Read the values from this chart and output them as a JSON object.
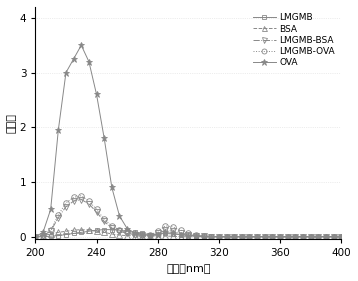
{
  "title": "",
  "xlabel": "波长（nm）",
  "ylabel": "吸光値",
  "xlim": [
    200,
    400
  ],
  "ylim": [
    -0.05,
    4.2
  ],
  "xticks": [
    200,
    240,
    280,
    320,
    360,
    400
  ],
  "yticks": [
    0,
    1,
    2,
    3,
    4
  ],
  "series": {
    "LMGMB": {
      "x": [
        200,
        205,
        210,
        215,
        220,
        225,
        230,
        235,
        240,
        245,
        250,
        255,
        260,
        265,
        270,
        275,
        280,
        285,
        290,
        295,
        300,
        305,
        310,
        315,
        320,
        325,
        330,
        335,
        340,
        345,
        350,
        355,
        360,
        365,
        370,
        375,
        380,
        385,
        390,
        395,
        400
      ],
      "y": [
        0.0,
        0.0,
        0.01,
        0.02,
        0.04,
        0.06,
        0.08,
        0.1,
        0.12,
        0.13,
        0.13,
        0.12,
        0.1,
        0.08,
        0.06,
        0.04,
        0.05,
        0.06,
        0.05,
        0.04,
        0.03,
        0.02,
        0.01,
        0.01,
        0.0,
        0.0,
        0.0,
        0.0,
        0.0,
        0.0,
        0.0,
        0.0,
        0.0,
        0.0,
        0.0,
        0.0,
        0.0,
        0.0,
        0.0,
        0.0,
        0.0
      ],
      "marker": "s",
      "color": "#888888",
      "linestyle": "-"
    },
    "BSA": {
      "x": [
        200,
        205,
        210,
        215,
        220,
        225,
        230,
        235,
        240,
        245,
        250,
        255,
        260,
        265,
        270,
        275,
        280,
        285,
        290,
        295,
        300,
        305,
        310,
        315,
        320,
        325,
        330,
        335,
        340,
        345,
        350,
        355,
        360,
        365,
        370,
        375,
        380,
        385,
        390,
        395,
        400
      ],
      "y": [
        0.0,
        0.02,
        0.05,
        0.08,
        0.1,
        0.12,
        0.13,
        0.12,
        0.1,
        0.08,
        0.05,
        0.03,
        0.02,
        0.02,
        0.01,
        0.01,
        0.02,
        0.01,
        0.01,
        0.0,
        0.0,
        0.0,
        0.0,
        0.0,
        0.0,
        0.0,
        0.0,
        0.0,
        0.0,
        0.0,
        0.0,
        0.0,
        0.0,
        0.0,
        0.0,
        0.0,
        0.0,
        0.0,
        0.0,
        0.0,
        0.0
      ],
      "marker": "^",
      "color": "#888888",
      "linestyle": "--"
    },
    "LMGMB-BSA": {
      "x": [
        200,
        205,
        210,
        215,
        220,
        225,
        230,
        235,
        240,
        245,
        250,
        255,
        260,
        265,
        270,
        275,
        280,
        285,
        290,
        295,
        300,
        305,
        310,
        315,
        320,
        325,
        330,
        335,
        340,
        345,
        350,
        355,
        360,
        365,
        370,
        375,
        380,
        385,
        390,
        395,
        400
      ],
      "y": [
        0.0,
        0.02,
        0.1,
        0.35,
        0.55,
        0.65,
        0.68,
        0.6,
        0.45,
        0.28,
        0.16,
        0.1,
        0.06,
        0.04,
        0.03,
        0.02,
        0.06,
        0.12,
        0.1,
        0.07,
        0.04,
        0.02,
        0.01,
        0.0,
        0.0,
        0.0,
        0.0,
        0.0,
        0.0,
        0.0,
        0.0,
        0.0,
        0.0,
        0.0,
        0.0,
        0.0,
        0.0,
        0.0,
        0.0,
        0.0,
        0.0
      ],
      "marker": "v",
      "color": "#888888",
      "linestyle": "-."
    },
    "LMGMB-OVA": {
      "x": [
        200,
        205,
        210,
        215,
        220,
        225,
        230,
        235,
        240,
        245,
        250,
        255,
        260,
        265,
        270,
        275,
        280,
        285,
        290,
        295,
        300,
        305,
        310,
        315,
        320,
        325,
        330,
        335,
        340,
        345,
        350,
        355,
        360,
        365,
        370,
        375,
        380,
        385,
        390,
        395,
        400
      ],
      "y": [
        0.0,
        0.03,
        0.12,
        0.4,
        0.62,
        0.72,
        0.75,
        0.65,
        0.5,
        0.32,
        0.2,
        0.12,
        0.08,
        0.05,
        0.04,
        0.03,
        0.1,
        0.2,
        0.18,
        0.12,
        0.07,
        0.03,
        0.01,
        0.0,
        0.0,
        0.0,
        0.0,
        0.0,
        0.0,
        0.0,
        0.0,
        0.0,
        0.0,
        0.0,
        0.0,
        0.0,
        0.0,
        0.0,
        0.0,
        0.0,
        0.0
      ],
      "marker": "o",
      "color": "#888888",
      "linestyle": ":"
    },
    "OVA": {
      "x": [
        200,
        205,
        210,
        215,
        220,
        225,
        230,
        235,
        240,
        245,
        250,
        255,
        260,
        265,
        270,
        275,
        280,
        285,
        290,
        295,
        300,
        305,
        310,
        315,
        320,
        325,
        330,
        335,
        340,
        345,
        350,
        355,
        360,
        365,
        370,
        375,
        380,
        385,
        390,
        395,
        400
      ],
      "y": [
        0.0,
        0.08,
        0.5,
        1.95,
        3.0,
        3.25,
        3.5,
        3.2,
        2.6,
        1.8,
        0.9,
        0.38,
        0.15,
        0.07,
        0.04,
        0.02,
        0.04,
        0.08,
        0.06,
        0.04,
        0.02,
        0.01,
        0.0,
        0.0,
        0.0,
        0.0,
        0.0,
        0.0,
        0.0,
        0.0,
        0.0,
        0.0,
        0.0,
        0.0,
        0.0,
        0.0,
        0.0,
        0.0,
        0.0,
        0.0,
        0.0
      ],
      "marker": "*",
      "color": "#888888",
      "linestyle": "-"
    }
  },
  "legend_order": [
    "LMGMB",
    "BSA",
    "LMGMB-BSA",
    "LMGMB-OVA",
    "OVA"
  ]
}
